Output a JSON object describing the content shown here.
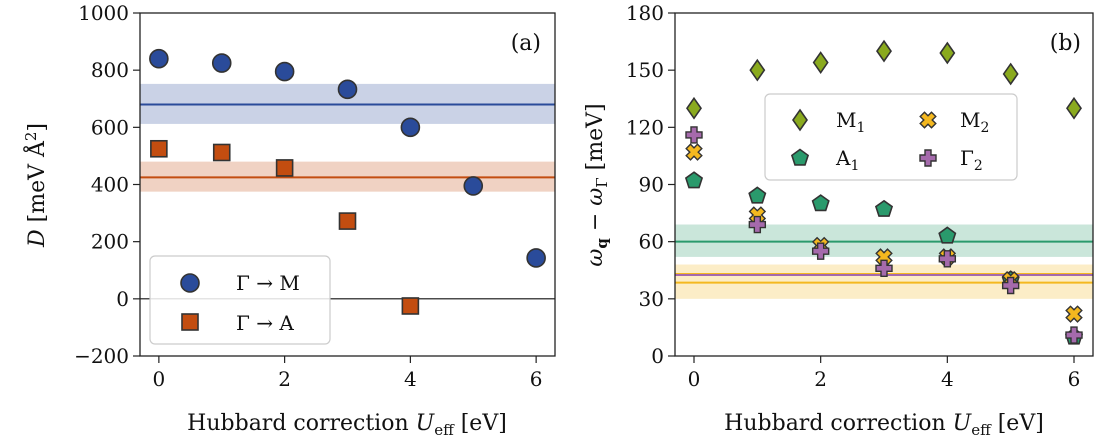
{
  "chart_data": [
    {
      "type": "scatter",
      "panel_label": "(a)",
      "xlabel_text": "Hubbard correction ",
      "xlabel_sym": "U",
      "xlabel_sub": "eff",
      "xlabel_unit": " [eV]",
      "ylabel_sym": "D",
      "ylabel_unit": " [meV Å",
      "ylabel_sup": "2",
      "ylabel_close": "]",
      "xlim": [
        -0.3,
        6.3
      ],
      "ylim": [
        -200,
        1000
      ],
      "xticks": [
        0,
        2,
        4,
        6
      ],
      "yticks": [
        -200,
        0,
        200,
        400,
        600,
        800,
        1000
      ],
      "ytick_labels": [
        "−200",
        "0",
        "200",
        "400",
        "600",
        "800",
        "1000"
      ],
      "zero_line": true,
      "legend_position": "lower-left",
      "series": [
        {
          "name": "Γ → M",
          "marker": "circle",
          "color": "#2a4b9a",
          "x": [
            0,
            1,
            2,
            3,
            4,
            5,
            6
          ],
          "y": [
            840,
            825,
            795,
            733,
            600,
            395,
            143
          ]
        },
        {
          "name": "Γ → A",
          "marker": "square",
          "color": "#c34d10",
          "x": [
            0,
            1,
            2,
            3,
            4
          ],
          "y": [
            525,
            512,
            458,
            272,
            -25
          ]
        }
      ],
      "bands": [
        {
          "center": 680,
          "low": 612,
          "high": 752,
          "color": "#2a4b9a"
        },
        {
          "center": 425,
          "low": 375,
          "high": 480,
          "color": "#c34d10"
        }
      ]
    },
    {
      "type": "scatter",
      "panel_label": "(b)",
      "xlabel_text": "Hubbard correction ",
      "xlabel_sym": "U",
      "xlabel_sub": "eff",
      "xlabel_unit": " [eV]",
      "ylabel_sym1": "ω",
      "ylabel_sub1": "q",
      "ylabel_mid": " − ",
      "ylabel_sym2": "ω",
      "ylabel_sub2": "Γ",
      "ylabel_unit": " [meV]",
      "xlim": [
        -0.3,
        6.3
      ],
      "ylim": [
        0,
        180
      ],
      "xticks": [
        0,
        2,
        4,
        6
      ],
      "yticks": [
        0,
        30,
        60,
        90,
        120,
        150,
        180
      ],
      "ytick_labels": [
        "0",
        "30",
        "60",
        "90",
        "120",
        "150",
        "180"
      ],
      "legend_position": "upper-center",
      "series": [
        {
          "name": "M",
          "name_sub": "1",
          "marker": "diamond",
          "color": "#8aaa1e",
          "x": [
            0,
            1,
            2,
            3,
            4,
            5,
            6
          ],
          "y": [
            130,
            150,
            154,
            160,
            159,
            148,
            130
          ]
        },
        {
          "name": "A",
          "name_sub": "1",
          "marker": "pentagon",
          "color": "#2a9a6c",
          "x": [
            0,
            1,
            2,
            3,
            4,
            5,
            6
          ],
          "y": [
            92,
            84,
            80,
            77,
            63,
            40,
            10
          ]
        },
        {
          "name": "M",
          "name_sub": "2",
          "marker": "x",
          "color": "#f4b81f",
          "x": [
            0,
            1,
            2,
            3,
            4,
            5,
            6
          ],
          "y": [
            107,
            74,
            58,
            52,
            52,
            40,
            22
          ]
        },
        {
          "name": "Γ",
          "name_sub": "2",
          "marker": "plus",
          "color": "#a56aac",
          "x": [
            0,
            1,
            2,
            3,
            4,
            5,
            6
          ],
          "y": [
            116,
            69,
            55,
            46,
            51,
            37,
            11
          ]
        }
      ],
      "bands": [
        {
          "center": 60,
          "low": 52,
          "high": 69,
          "color": "#2a9a6c"
        },
        {
          "center": 43,
          "low": 30,
          "high": 48,
          "color": "#f4b81f"
        },
        {
          "center": 38.5,
          "low": null,
          "high": null,
          "color": "#f4b81f"
        },
        {
          "center": 42.5,
          "low": null,
          "high": null,
          "color": "#a56aac"
        }
      ]
    }
  ]
}
